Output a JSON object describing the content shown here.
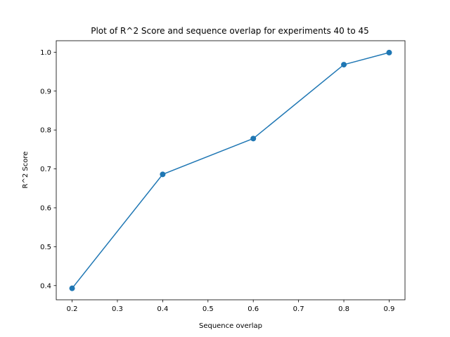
{
  "chart_data": {
    "type": "line",
    "title": "Plot of R^2 Score and sequence overlap for experiments 40 to 45",
    "xlabel": "Sequence overlap",
    "ylabel": "R^2 Score",
    "xlim": [
      0.165,
      0.935
    ],
    "ylim": [
      0.3635,
      1.0295
    ],
    "xticks": [
      0.2,
      0.3,
      0.4,
      0.5,
      0.6,
      0.7,
      0.8,
      0.9
    ],
    "xtick_labels": [
      "0.2",
      "0.3",
      "0.4",
      "0.5",
      "0.6",
      "0.7",
      "0.8",
      "0.9"
    ],
    "yticks": [
      0.4,
      0.5,
      0.6,
      0.7,
      0.8,
      0.9,
      1.0
    ],
    "ytick_labels": [
      "0.4",
      "0.5",
      "0.6",
      "0.7",
      "0.8",
      "0.9",
      "1.0"
    ],
    "grid": false,
    "series": [
      {
        "color": "#1f77b4",
        "marker": "circle",
        "x": [
          0.2,
          0.4,
          0.6,
          0.8,
          0.9
        ],
        "y": [
          0.393,
          0.686,
          0.778,
          0.968,
          0.999
        ]
      }
    ]
  }
}
